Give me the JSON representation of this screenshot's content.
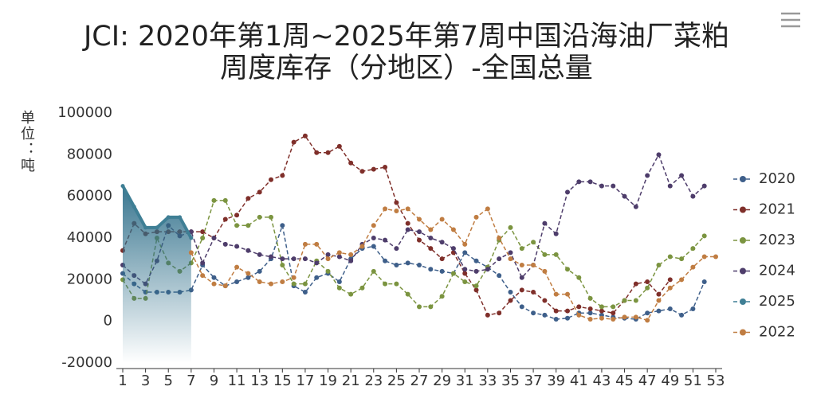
{
  "chart_data": {
    "type": "line",
    "title": "JCI: 2020年第1周~2025年第7周中国沿海油厂菜粕周度库存（分地区）-全国总量",
    "y_label": "单位：吨",
    "x": [
      1,
      2,
      3,
      4,
      5,
      6,
      7,
      8,
      9,
      10,
      11,
      12,
      13,
      14,
      15,
      16,
      17,
      18,
      19,
      20,
      21,
      22,
      23,
      24,
      25,
      26,
      27,
      28,
      29,
      30,
      31,
      32,
      33,
      34,
      35,
      36,
      37,
      38,
      39,
      40,
      41,
      42,
      43,
      44,
      45,
      46,
      47,
      48,
      49,
      50,
      51,
      52,
      53
    ],
    "xlim": [
      1,
      53
    ],
    "xticks": [
      1,
      3,
      5,
      7,
      9,
      11,
      13,
      15,
      17,
      19,
      21,
      23,
      25,
      27,
      29,
      31,
      33,
      35,
      37,
      39,
      41,
      43,
      45,
      47,
      49,
      51,
      53
    ],
    "ylim": [
      -20000,
      100000
    ],
    "yticks": [
      -20000,
      0,
      20000,
      40000,
      60000,
      80000,
      100000
    ],
    "grid": false,
    "legend": "right",
    "series": [
      {
        "name": "2020",
        "color": "#3e5f8a",
        "values": [
          23000,
          18000,
          14000,
          14000,
          14000,
          14000,
          15000,
          27000,
          21000,
          17000,
          19000,
          21000,
          24000,
          30000,
          46000,
          17000,
          14000,
          21000,
          23000,
          19000,
          30000,
          35000,
          36000,
          29000,
          27000,
          28000,
          27000,
          25000,
          24000,
          23000,
          33000,
          29000,
          26000,
          22000,
          14000,
          7000,
          4000,
          3000,
          1000,
          1500,
          4000,
          4000,
          3000,
          2000,
          1500,
          1000,
          4000,
          5000,
          6000,
          3000,
          6000,
          19000,
          null
        ]
      },
      {
        "name": "2021",
        "color": "#7f2f2a",
        "values": [
          34000,
          47000,
          42000,
          43000,
          43000,
          43000,
          43000,
          43000,
          40000,
          49000,
          51000,
          59000,
          62000,
          68000,
          70000,
          86000,
          89000,
          81000,
          81000,
          84000,
          76000,
          72000,
          73000,
          74000,
          57000,
          47000,
          39000,
          35000,
          30000,
          33000,
          23000,
          15000,
          3000,
          4000,
          10000,
          15000,
          14000,
          10000,
          5000,
          5000,
          7000,
          6000,
          5000,
          4000,
          10000,
          18000,
          19000,
          13000,
          20000,
          null,
          null,
          null,
          null
        ]
      },
      {
        "name": "2023",
        "color": "#7b9440",
        "values": [
          20000,
          11000,
          11000,
          40000,
          28000,
          24000,
          28000,
          40000,
          58000,
          58000,
          46000,
          46000,
          50000,
          50000,
          27000,
          18000,
          18000,
          29000,
          24000,
          16000,
          13000,
          16000,
          24000,
          18000,
          18000,
          13000,
          7000,
          7000,
          12000,
          23000,
          19000,
          17000,
          26000,
          39000,
          45000,
          35000,
          38000,
          32000,
          32000,
          25000,
          21000,
          11000,
          7000,
          7000,
          10000,
          10000,
          16000,
          27000,
          31000,
          30000,
          35000,
          41000,
          null
        ]
      },
      {
        "name": "2024",
        "color": "#4e3d6b",
        "values": [
          27000,
          22000,
          18000,
          29000,
          46000,
          41000,
          43000,
          28000,
          40000,
          37000,
          36000,
          34000,
          32000,
          31000,
          30000,
          30000,
          30000,
          28000,
          32000,
          31000,
          29000,
          37000,
          40000,
          39000,
          35000,
          44000,
          43000,
          40000,
          38000,
          35000,
          25000,
          24000,
          25000,
          30000,
          33000,
          21000,
          27000,
          47000,
          42000,
          62000,
          67000,
          67000,
          65000,
          65000,
          60000,
          55000,
          70000,
          80000,
          65000,
          70000,
          60000,
          65000,
          null
        ]
      },
      {
        "name": "2025",
        "color": "#3f7f95",
        "area": true,
        "values": [
          65000,
          55000,
          45000,
          45000,
          50000,
          50000,
          40000,
          null,
          null,
          null,
          null,
          null,
          null,
          null,
          null,
          null,
          null,
          null,
          null,
          null,
          null,
          null,
          null,
          null,
          null,
          null,
          null,
          null,
          null,
          null,
          null,
          null,
          null,
          null,
          null,
          null,
          null,
          null,
          null,
          null,
          null,
          null,
          null,
          null,
          null,
          null,
          null,
          null,
          null,
          null,
          null,
          null,
          null
        ]
      },
      {
        "name": "2022",
        "color": "#c07d42",
        "values": [
          null,
          null,
          null,
          null,
          null,
          null,
          33000,
          22000,
          18000,
          17000,
          26000,
          23000,
          19000,
          18000,
          19000,
          21000,
          37000,
          37000,
          30000,
          33000,
          32000,
          36000,
          46000,
          54000,
          53000,
          54000,
          49000,
          44000,
          49000,
          44000,
          37000,
          50000,
          54000,
          40000,
          30000,
          27000,
          27000,
          24000,
          13000,
          13000,
          3000,
          1000,
          1500,
          1000,
          2000,
          2000,
          500,
          10000,
          16000,
          20000,
          26000,
          31000,
          31000
        ]
      }
    ]
  }
}
